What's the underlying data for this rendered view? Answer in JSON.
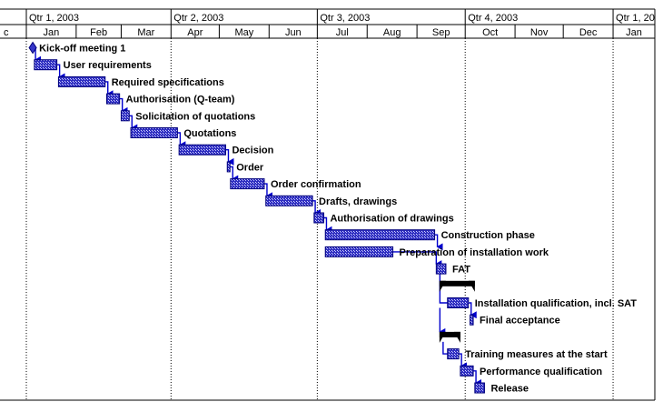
{
  "chart_data": {
    "type": "gantt",
    "timescale": {
      "quarters": [
        "Qtr 1, 2003",
        "Qtr 2, 2003",
        "Qtr 3, 2003",
        "Qtr 4, 2003",
        "Qtr 1, 20"
      ],
      "months": [
        "c",
        "Jan",
        "Feb",
        "Mar",
        "Apr",
        "May",
        "Jun",
        "Jul",
        "Aug",
        "Sep",
        "Oct",
        "Nov",
        "Dec",
        "Jan"
      ]
    },
    "tasks": [
      {
        "name": "Kick-off meeting 1",
        "start": "2003-01-05",
        "end": "2003-01-05",
        "type": "milestone"
      },
      {
        "name": "User requirements",
        "start": "2003-01-06",
        "end": "2003-01-20",
        "type": "task"
      },
      {
        "name": "Required specifications",
        "start": "2003-01-21",
        "end": "2003-02-19",
        "type": "task"
      },
      {
        "name": "Authorisation (Q-team)",
        "start": "2003-02-20",
        "end": "2003-02-28",
        "type": "task"
      },
      {
        "name": "Solicitation of quotations",
        "start": "2003-03-01",
        "end": "2003-03-06",
        "type": "task"
      },
      {
        "name": "Quotations",
        "start": "2003-03-07",
        "end": "2003-04-05",
        "type": "task"
      },
      {
        "name": "Decision",
        "start": "2003-04-06",
        "end": "2003-05-05",
        "type": "task"
      },
      {
        "name": "Order",
        "start": "2003-05-06",
        "end": "2003-05-07",
        "type": "task"
      },
      {
        "name": "Order confirmation",
        "start": "2003-05-08",
        "end": "2003-05-29",
        "type": "task"
      },
      {
        "name": "Drafts, drawings",
        "start": "2003-05-30",
        "end": "2003-06-28",
        "type": "task"
      },
      {
        "name": "Authorisation of drawings",
        "start": "2003-06-29",
        "end": "2003-07-05",
        "type": "task"
      },
      {
        "name": "Construction phase",
        "start": "2003-07-06",
        "end": "2003-09-12",
        "type": "task"
      },
      {
        "name": "Preparation of installation work",
        "start": "2003-07-06",
        "end": "2003-08-17",
        "type": "task"
      },
      {
        "name": "FAT",
        "start": "2003-09-13",
        "end": "2003-09-19",
        "type": "task"
      },
      {
        "name": "",
        "start": "2003-09-15",
        "end": "2003-10-07",
        "type": "summary"
      },
      {
        "name": "Installation qualification, incl. SAT",
        "start": "2003-09-20",
        "end": "2003-10-03",
        "type": "task"
      },
      {
        "name": "Final acceptance",
        "start": "2003-10-04",
        "end": "2003-10-06",
        "type": "task"
      },
      {
        "name": "",
        "start": "2003-09-15",
        "end": "2003-09-28",
        "type": "summary"
      },
      {
        "name": "Training measures at the start",
        "start": "2003-09-20",
        "end": "2003-09-27",
        "type": "task"
      },
      {
        "name": "Performance qualification",
        "start": "2003-09-28",
        "end": "2003-10-06",
        "type": "task"
      },
      {
        "name": "Release",
        "start": "2003-10-07",
        "end": "2003-10-13",
        "type": "task"
      }
    ],
    "colors": {
      "task_fill": "#3636c8",
      "task_border": "#00007a",
      "link": "#0000cc",
      "summary": "#000000",
      "grid": "#000000"
    }
  }
}
